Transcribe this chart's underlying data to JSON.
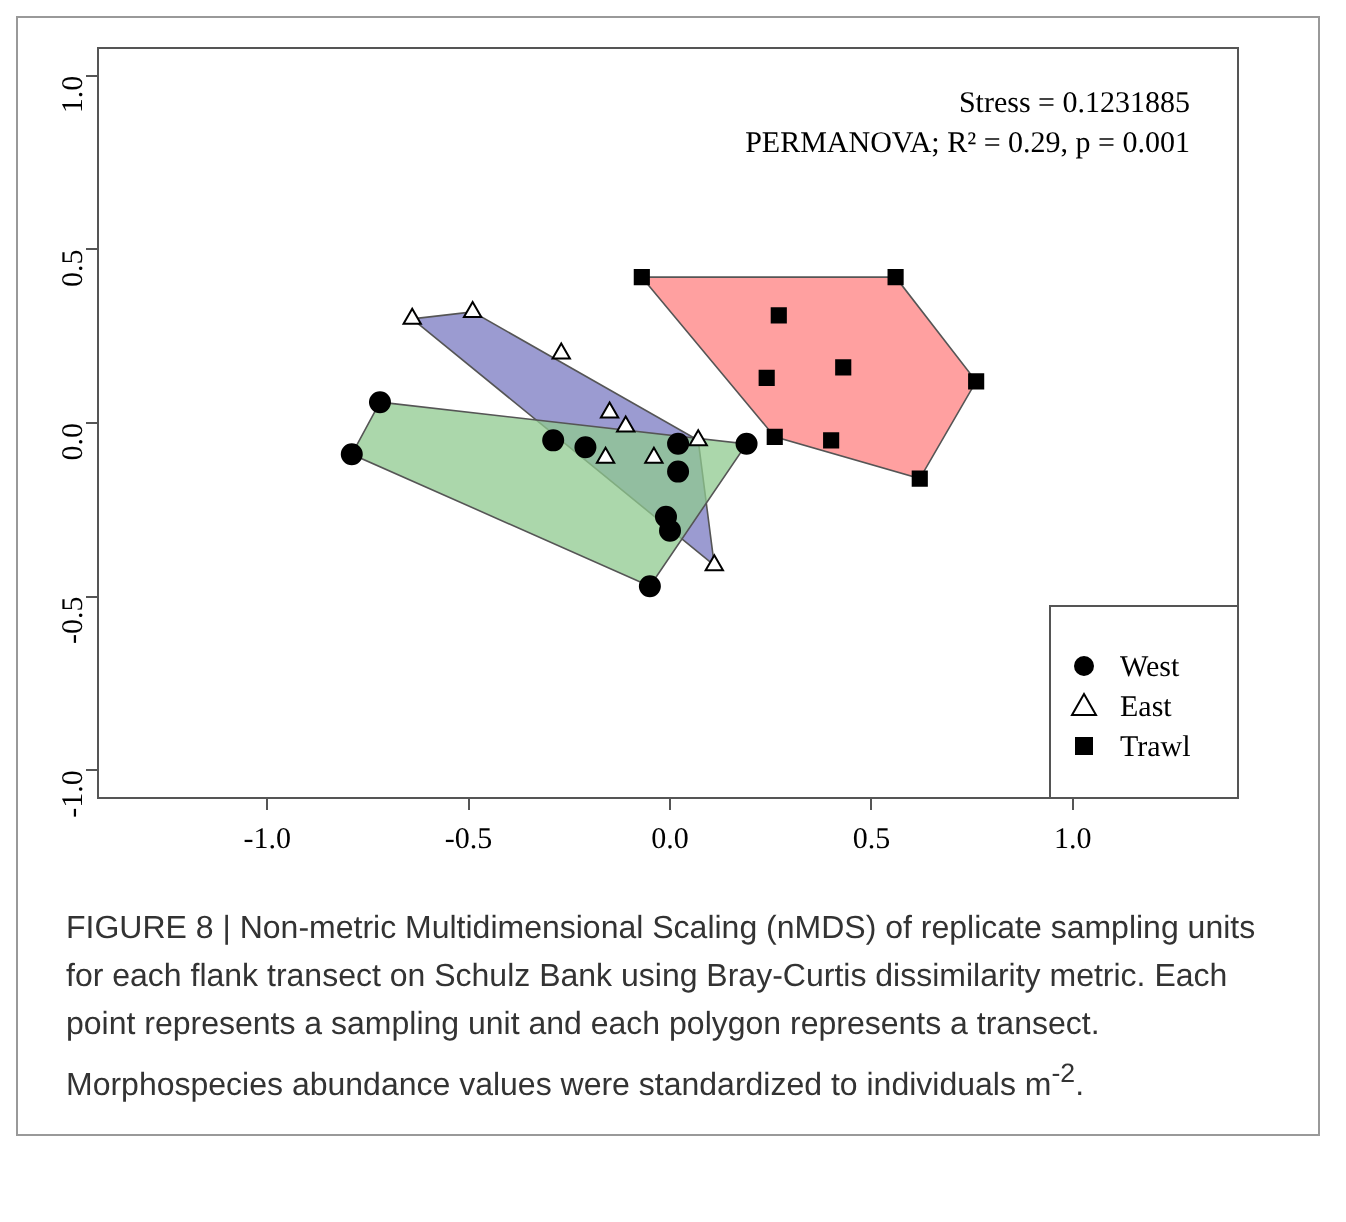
{
  "chart_data": {
    "type": "scatter",
    "xlim": [
      -1.42,
      1.41
    ],
    "ylim": [
      -1.08,
      1.08
    ],
    "xticks": [
      {
        "value": -1,
        "label": "-1.0"
      },
      {
        "value": -0.5,
        "label": "-0.5"
      },
      {
        "value": 0,
        "label": "0.0"
      },
      {
        "value": 0.5,
        "label": "0.5"
      },
      {
        "value": 1,
        "label": "1.0"
      }
    ],
    "yticks": [
      {
        "value": -1,
        "label": "-1.0"
      },
      {
        "value": -0.5,
        "label": "-0.5"
      },
      {
        "value": 0,
        "label": "0.0"
      },
      {
        "value": 0.5,
        "label": "0.5"
      },
      {
        "value": 1,
        "label": "1.0"
      }
    ],
    "grid": false,
    "legend": "bottom right",
    "series": [
      {
        "type": "area",
        "color": "#8fca8f",
        "x": [
          -0.72,
          0.19,
          -0.05,
          -0.79
        ],
        "values": [
          0.06,
          -0.06,
          -0.47,
          -0.09
        ]
      },
      {
        "type": "area",
        "color": "#7a7ac2",
        "x": [
          -0.64,
          -0.49,
          0.07,
          0.11
        ],
        "values": [
          0.3,
          0.32,
          -0.05,
          -0.41
        ]
      },
      {
        "type": "area",
        "color": "#ff8080",
        "x": [
          -0.07,
          0.56,
          0.76,
          0.62,
          0.26
        ],
        "values": [
          0.42,
          0.42,
          0.12,
          -0.16,
          -0.04
        ]
      },
      {
        "type": "scatter",
        "name": "West",
        "color": "#000000",
        "marker": "circle",
        "x": [
          -0.72,
          -0.79,
          -0.29,
          -0.21,
          0.02,
          0.19,
          0.02,
          -0.01,
          0,
          -0.05
        ],
        "values": [
          0.06,
          -0.09,
          -0.05,
          -0.07,
          -0.06,
          -0.06,
          -0.14,
          -0.27,
          -0.31,
          -0.47
        ]
      },
      {
        "type": "scatter",
        "name": "East",
        "color": "#000000",
        "marker": "triangle",
        "x": [
          -0.64,
          -0.49,
          -0.27,
          -0.15,
          -0.11,
          -0.16,
          -0.04,
          0.07,
          0.11
        ],
        "values": [
          0.3,
          0.32,
          0.2,
          0.03,
          -0.01,
          -0.1,
          -0.1,
          -0.05,
          -0.41
        ]
      },
      {
        "type": "scatter",
        "name": "Trawl",
        "color": "#000000",
        "marker": "square",
        "x": [
          -0.07,
          0.56,
          0.76,
          0.62,
          0.4,
          0.26,
          0.24,
          0.43,
          0.27
        ],
        "values": [
          0.42,
          0.42,
          0.12,
          -0.16,
          -0.05,
          -0.04,
          0.13,
          0.16,
          0.31
        ]
      }
    ],
    "annotations": [
      "Stress = 0.1231885",
      "PERMANOVA; R² = 0.29, p = 0.001",
      "FIGURE 8 | Non-metric Multidimensional Scaling (nMDS) of replicate sampling units for each flank transect on Schulz Bank using Bray-Curtis dissimilarity metric. Each point represents a sampling unit and each polygon represents a transect. Morphospecies abundance values were standardized to individuals m$^{-2}$."
    ]
  }
}
